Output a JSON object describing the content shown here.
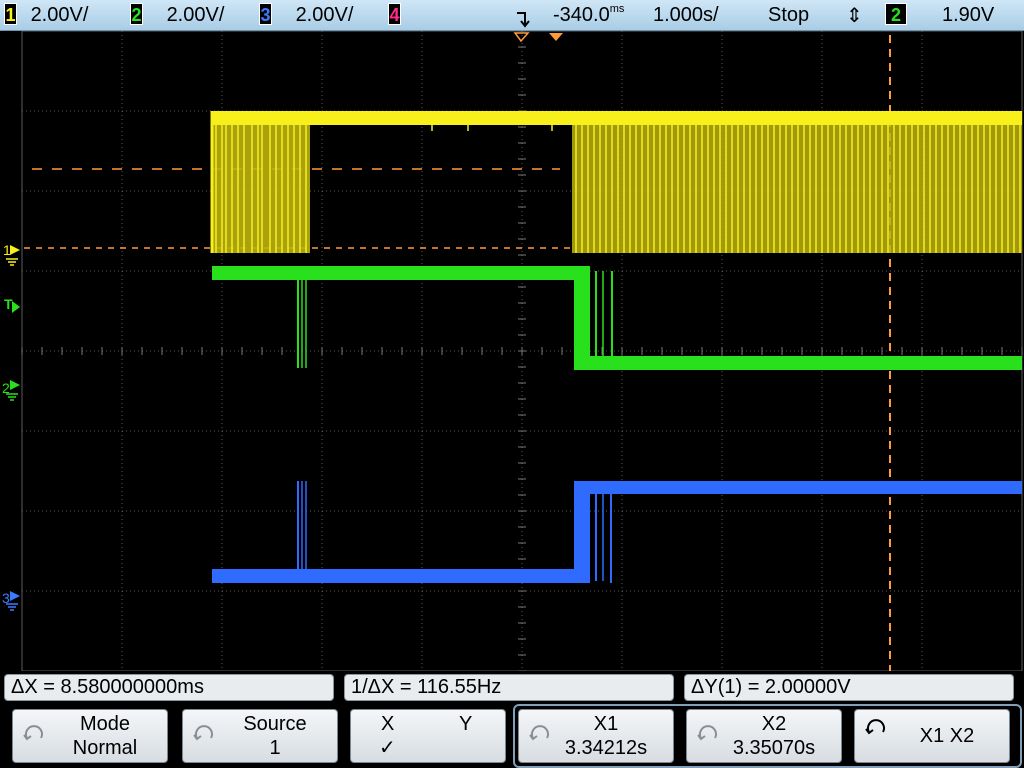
{
  "topbar": {
    "ch1": {
      "num": "1",
      "scale": "2.00V/"
    },
    "ch2": {
      "num": "2",
      "scale": "2.00V/"
    },
    "ch3": {
      "num": "3",
      "scale": "2.00V/"
    },
    "ch4": {
      "num": "4"
    },
    "delay": "-340.0",
    "delay_unit": "ms",
    "timebase": "1.000s/",
    "run_state": "Stop",
    "trigger_source": "2",
    "trigger_level": "1.90V",
    "colors": {
      "ch1": "#f7f01a",
      "ch2": "#29e01c",
      "ch3": "#2f6bff",
      "ch4": "#ff2a8a",
      "cursor": "#ff9a3c"
    }
  },
  "markers": {
    "ch1": "1",
    "trigger": "T",
    "ch2": "2",
    "ch3": "3"
  },
  "measurements": {
    "delta_x": "ΔX = 8.580000000ms",
    "inv_delta_x": "1/ΔX = 116.55Hz",
    "delta_y": "ΔY(1) = 2.00000V"
  },
  "softkeys": {
    "mode": {
      "label": "Mode",
      "value": "Normal",
      "icon": "knob-icon"
    },
    "source": {
      "label": "Source",
      "value": "1",
      "icon": "knob-icon"
    },
    "xy": {
      "x_label": "X",
      "y_label": "Y",
      "check": "✓"
    },
    "x1": {
      "label": "X1",
      "value": "3.34212s",
      "icon": "knob-icon"
    },
    "x2": {
      "label": "X2",
      "value": "3.35070s",
      "icon": "knob-icon"
    },
    "x1x2": {
      "label": "X1 X2",
      "icon": "knob-push-icon"
    }
  }
}
